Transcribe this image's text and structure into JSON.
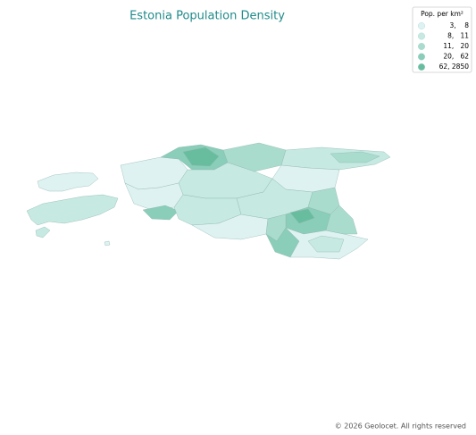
{
  "title": "Estonia Population Density",
  "legend": {
    "title": "Pop. per km²",
    "items": [
      {
        "label": "3,    8",
        "color": "#dff2f2"
      },
      {
        "label": "8,   11",
        "color": "#c6e9e1"
      },
      {
        "label": "11,   20",
        "color": "#a9dccd"
      },
      {
        "label": "20,   62",
        "color": "#8acdb8"
      },
      {
        "label": "62, 2850",
        "color": "#68bd9f"
      }
    ]
  },
  "copyright": "© 2026 Geolocet. All rights reserved"
}
